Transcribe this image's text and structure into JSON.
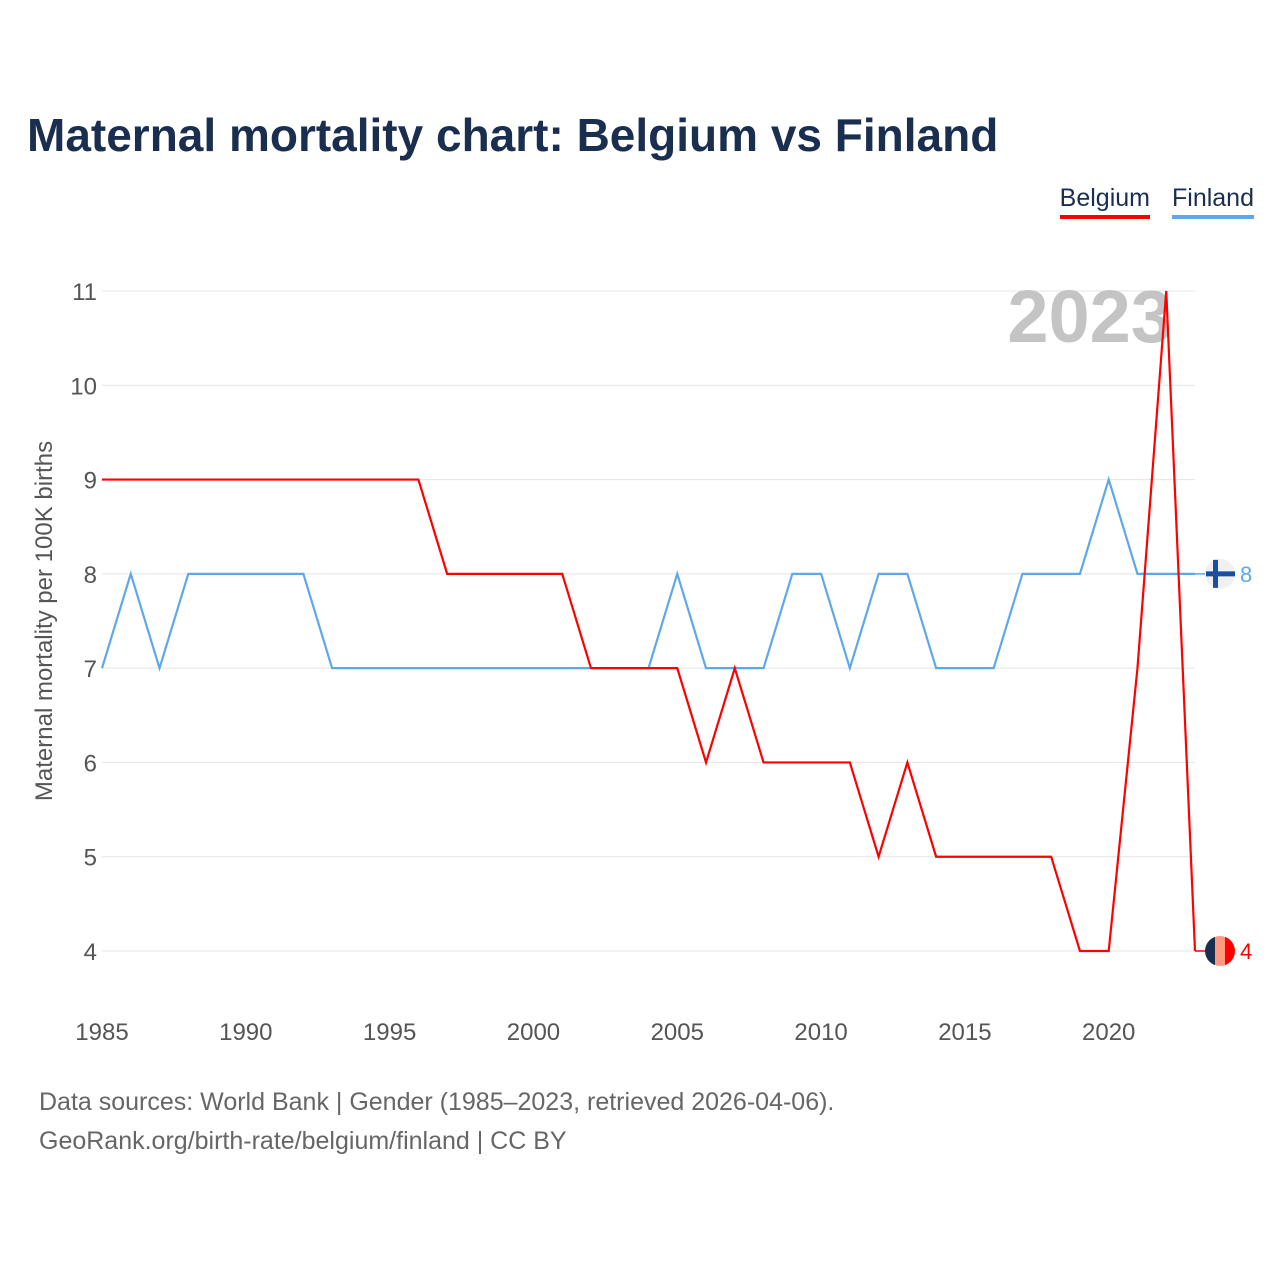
{
  "title": "Maternal mortality chart: Belgium vs Finland",
  "footer": {
    "line1": "Data sources: World Bank | Gender (1985–2023, retrieved 2026-04-06).",
    "line2": "GeoRank.org/birth-rate/belgium/finland | CC BY"
  },
  "chart_data": {
    "type": "line",
    "title": "Maternal mortality chart: Belgium vs Finland",
    "ylabel": "Maternal mortality per 100K births",
    "xlabel": "",
    "year_watermark": "2023",
    "xlim": [
      1985,
      2023
    ],
    "ylim": [
      4,
      11
    ],
    "xticks": [
      "1985",
      "1990",
      "1995",
      "2000",
      "2005",
      "2010",
      "2015",
      "2020"
    ],
    "yticks": [
      "4",
      "5",
      "6",
      "7",
      "8",
      "9",
      "10",
      "11"
    ],
    "legend_position": "top-right",
    "x": [
      1985,
      1986,
      1987,
      1988,
      1989,
      1990,
      1991,
      1992,
      1993,
      1994,
      1995,
      1996,
      1997,
      1998,
      1999,
      2000,
      2001,
      2002,
      2003,
      2004,
      2005,
      2006,
      2007,
      2008,
      2009,
      2010,
      2011,
      2012,
      2013,
      2014,
      2015,
      2016,
      2017,
      2018,
      2019,
      2020,
      2021,
      2022,
      2023
    ],
    "series": [
      {
        "name": "Belgium",
        "color": "#ff0000",
        "end_label": "4",
        "values": [
          9,
          9,
          9,
          9,
          9,
          9,
          9,
          9,
          9,
          9,
          9,
          9,
          8,
          8,
          8,
          8,
          8,
          7,
          7,
          7,
          7,
          6,
          7,
          6,
          6,
          6,
          6,
          5,
          6,
          5,
          5,
          5,
          5,
          5,
          4,
          4,
          7,
          11,
          4
        ]
      },
      {
        "name": "Finland",
        "color": "#5ea8ea",
        "end_label": "8",
        "values": [
          7,
          8,
          7,
          8,
          8,
          8,
          8,
          8,
          7,
          7,
          7,
          7,
          7,
          7,
          7,
          7,
          7,
          7,
          7,
          7,
          8,
          7,
          7,
          7,
          8,
          8,
          7,
          8,
          8,
          7,
          7,
          7,
          8,
          8,
          8,
          9,
          8,
          8,
          8
        ]
      }
    ]
  }
}
